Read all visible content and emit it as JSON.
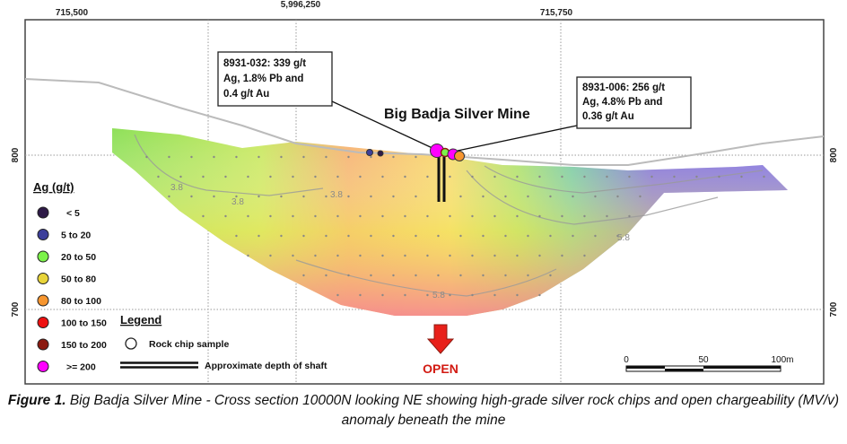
{
  "axes": {
    "top_ticks": [
      "715,500",
      "5,996,250",
      "715,750"
    ],
    "side_ticks": [
      "800",
      "700"
    ]
  },
  "title": "Big Badja Silver Mine",
  "callouts": [
    {
      "lines": [
        "8931-032: 339 g/t",
        "Ag, 1.8% Pb and",
        "0.4 g/t Au"
      ]
    },
    {
      "lines": [
        "8931-006: 256 g/t",
        "Ag, 4.8% Pb and",
        "0.36 g/t Au"
      ]
    }
  ],
  "contour_labels": [
    "3.8",
    "3.8",
    "3.8",
    "5.8",
    "5.8"
  ],
  "ag_legend": {
    "title": "Ag (g/t)",
    "items": [
      {
        "label": "< 5",
        "color": "#2e1a47"
      },
      {
        "label": "5 to 20",
        "color": "#3d3f9a"
      },
      {
        "label": "20 to 50",
        "color": "#7cf24a"
      },
      {
        "label": "50 to 80",
        "color": "#e8d43a"
      },
      {
        "label": "80 to 100",
        "color": "#f7962f"
      },
      {
        "label": "100 to 150",
        "color": "#ee1111"
      },
      {
        "label": "150 to 200",
        "color": "#8b1a10"
      },
      {
        "label": ">= 200",
        "color": "#ff00ff"
      }
    ]
  },
  "legend": {
    "title": "Legend",
    "rock_chip": "Rock chip sample",
    "shaft": "Approximate depth of shaft"
  },
  "open_label": "OPEN",
  "scale_bar": {
    "labels": [
      "0",
      "50",
      "100m"
    ]
  },
  "caption": {
    "prefix": "Figure 1.",
    "text": " Big Badja Silver Mine - Cross section 10000N looking NE showing high-grade silver rock chips and open chargeability (MV/v) anomaly beneath the mine"
  }
}
